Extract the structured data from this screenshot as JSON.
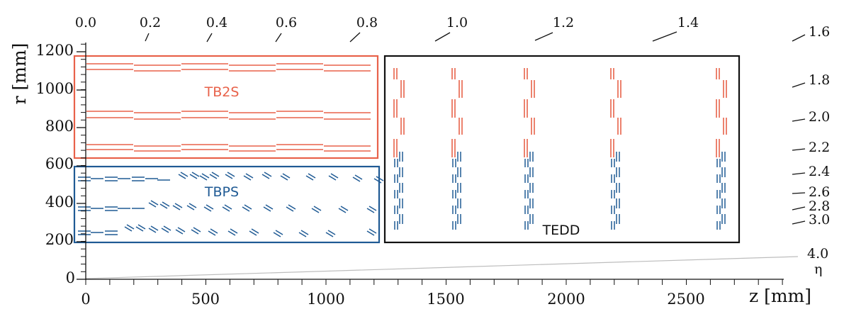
{
  "colors": {
    "tb2s": "#e8624a",
    "tbps": "#1f5a94",
    "tedd": "#111111",
    "axis": "#111111",
    "eta_line": "#bdbdbd"
  },
  "axes": {
    "x_label": "z [mm]",
    "y_label": "r [mm]",
    "x_ticks": [
      "0",
      "500",
      "1000",
      "1500",
      "2000",
      "2500"
    ],
    "y_ticks": [
      "0",
      "200",
      "400",
      "600",
      "800",
      "1000",
      "1200"
    ],
    "eta_symbol": "η"
  },
  "eta": {
    "top_labels": [
      "0.0",
      "0.2",
      "0.4",
      "0.6",
      "0.8",
      "1.0",
      "1.2",
      "1.4"
    ],
    "right_labels": [
      "1.6",
      "1.8",
      "2.0",
      "2.2",
      "2.4",
      "2.6",
      "2.8",
      "3.0",
      "4.0"
    ]
  },
  "regions": {
    "tb2s": "TB2S",
    "tbps": "TBPS",
    "tedd": "TEDD"
  }
}
